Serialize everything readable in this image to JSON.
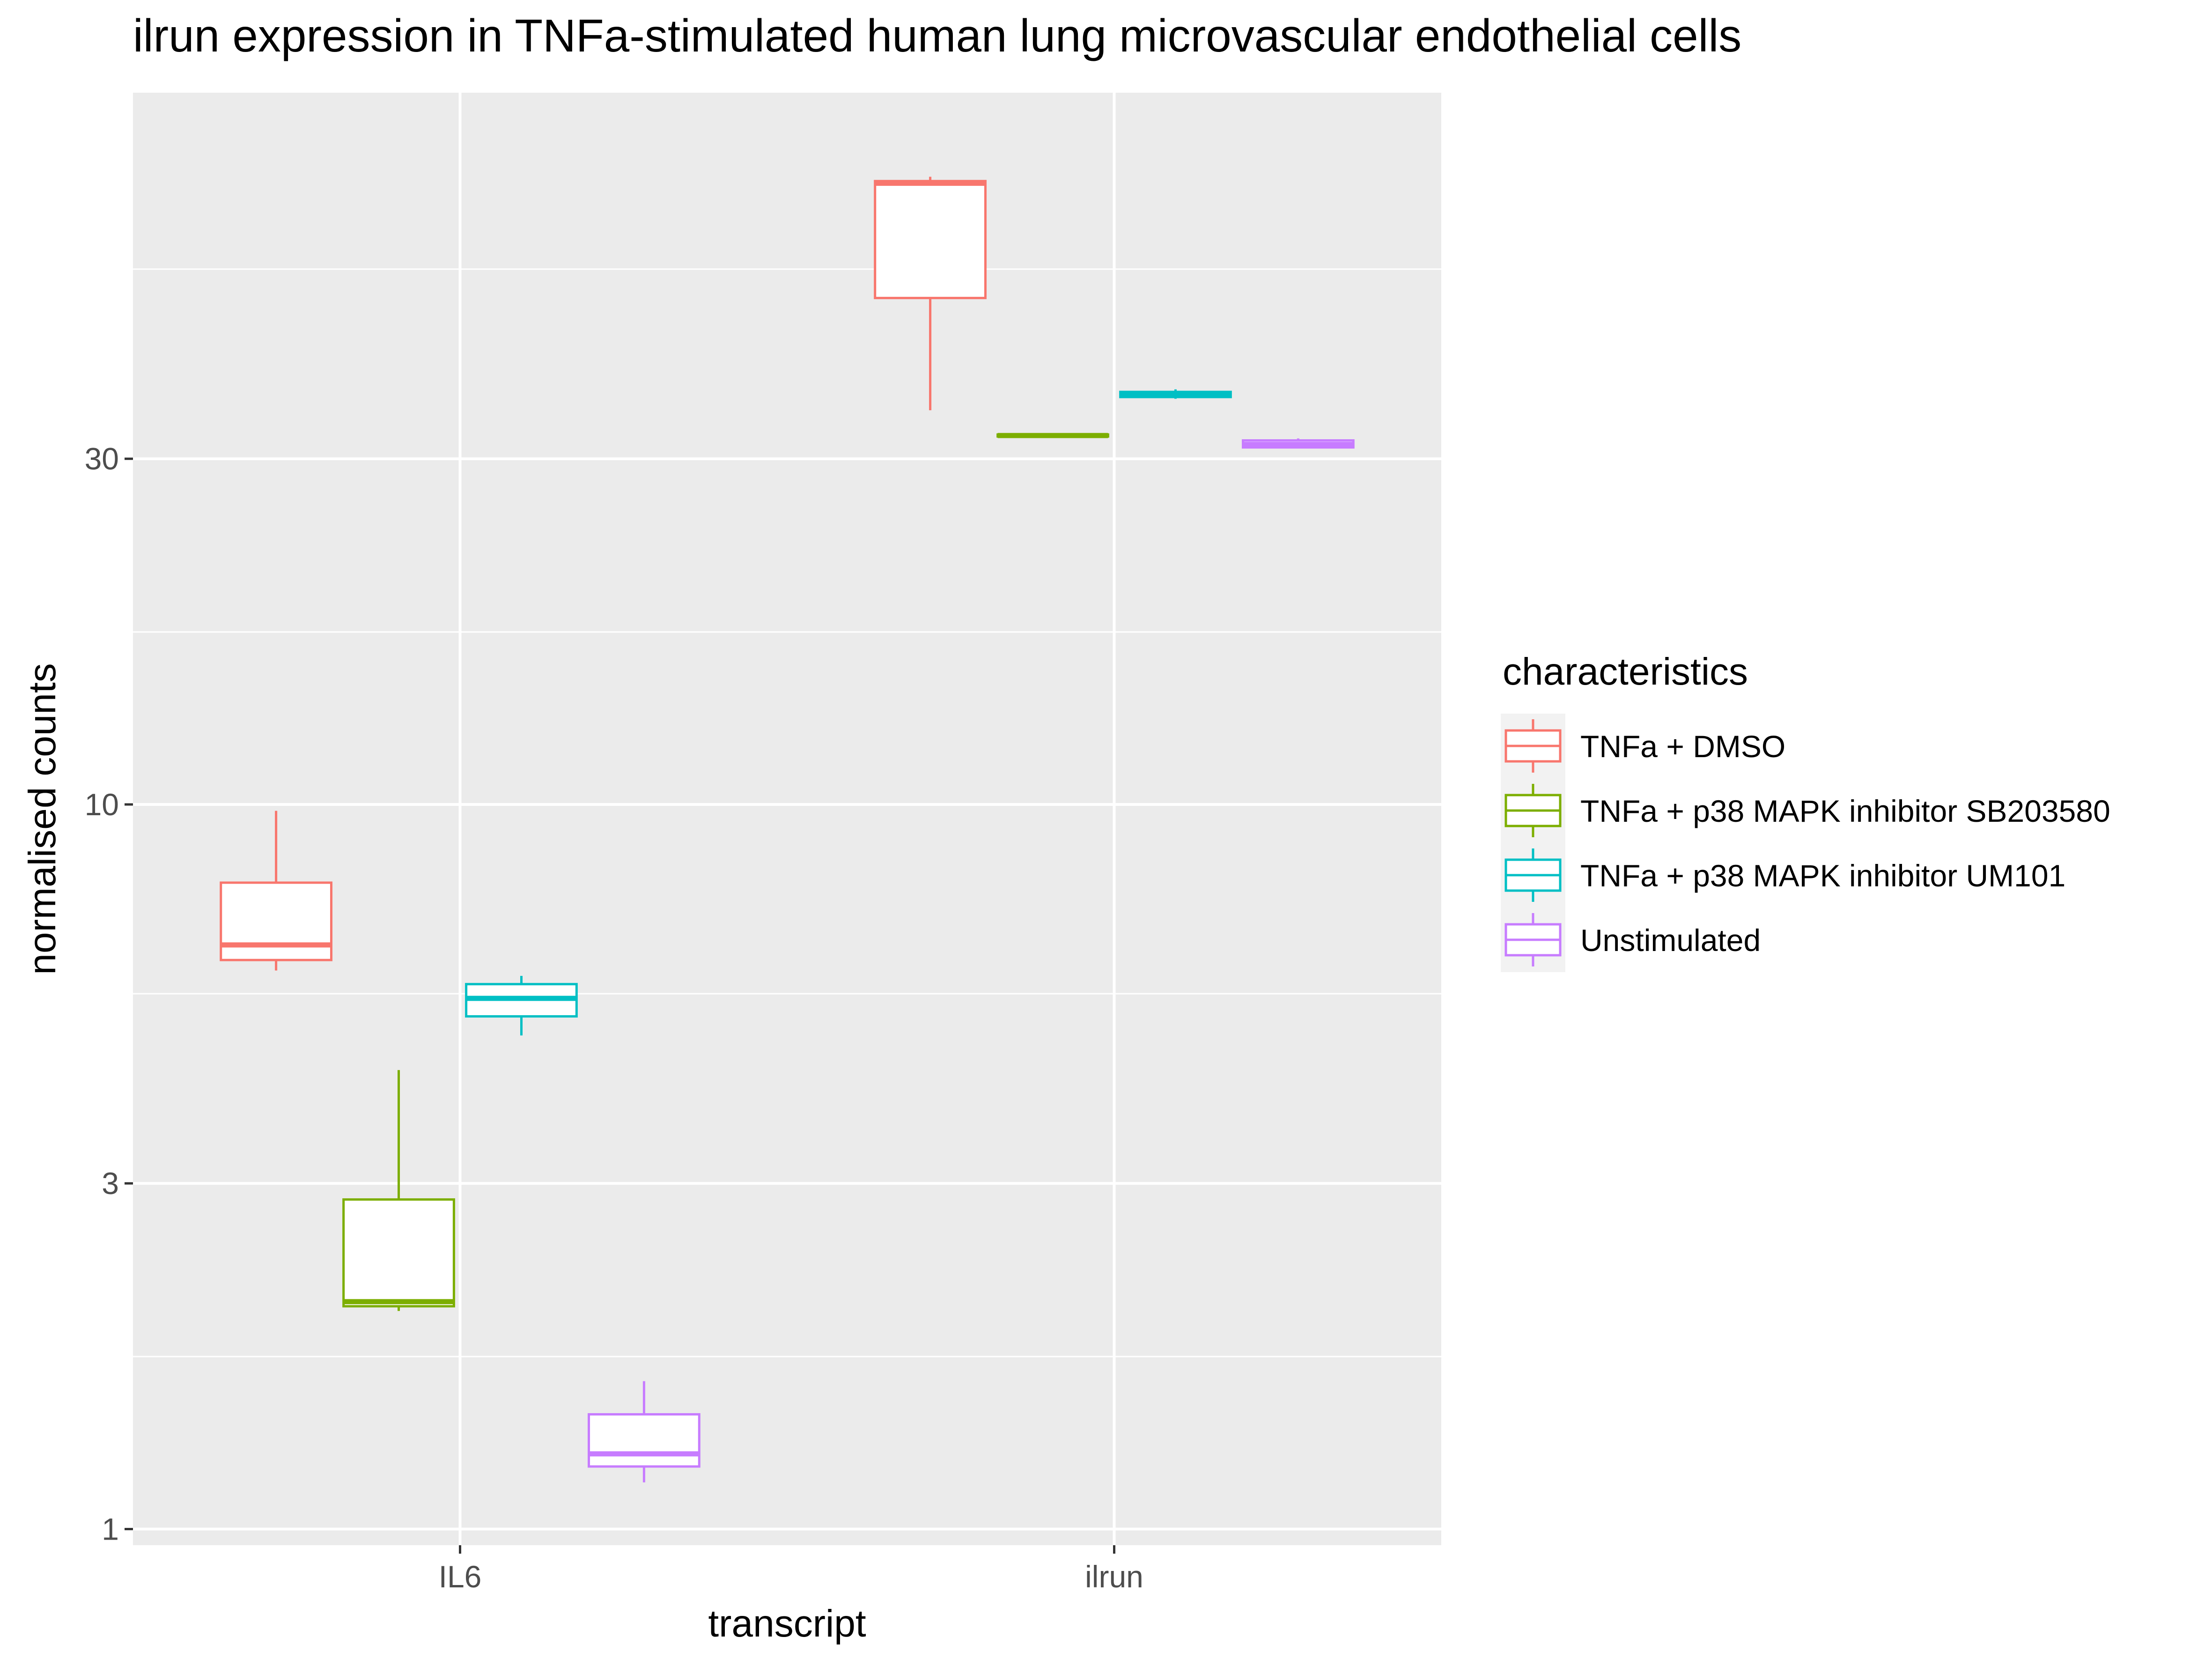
{
  "chart_data": {
    "type": "box",
    "title": "ilrun expression in TNFa-stimulated human lung microvascular endothelial cells",
    "xlabel": "transcript",
    "ylabel": "normalised counts",
    "y_scale": "log10",
    "ylim": [
      0.95,
      96
    ],
    "y_ticks": [
      {
        "value": 1,
        "label": "1"
      },
      {
        "value": 3,
        "label": "3"
      },
      {
        "value": 10,
        "label": "10"
      },
      {
        "value": 30,
        "label": "30"
      }
    ],
    "y_minor_ticks": [
      1.73,
      5.48,
      17.3,
      54.8
    ],
    "categories": [
      "IL6",
      "ilrun"
    ],
    "legend": {
      "title": "characteristics",
      "position": "right"
    },
    "series": [
      {
        "name": "TNFa + DMSO",
        "color": "#F8766D",
        "boxes": [
          {
            "category": "IL6",
            "whisker_low": 5.9,
            "q1": 6.1,
            "median": 6.4,
            "q3": 7.8,
            "whisker_high": 9.8
          },
          {
            "category": "ilrun",
            "whisker_low": 35,
            "q1": 50,
            "median": 72,
            "q3": 72.5,
            "whisker_high": 73.5
          }
        ]
      },
      {
        "name": "TNFa + p38 MAPK inhibitor SB203580",
        "color": "#7CAE00",
        "boxes": [
          {
            "category": "IL6",
            "whisker_low": 2.0,
            "q1": 2.03,
            "median": 2.06,
            "q3": 2.85,
            "whisker_high": 4.3
          },
          {
            "category": "ilrun",
            "whisker_low": 32.1,
            "q1": 32.2,
            "median": 32.3,
            "q3": 32.4,
            "whisker_high": 32.5
          }
        ]
      },
      {
        "name": "TNFa + p38 MAPK inhibitor UM101",
        "color": "#00BFC4",
        "boxes": [
          {
            "category": "IL6",
            "whisker_low": 4.8,
            "q1": 5.1,
            "median": 5.4,
            "q3": 5.65,
            "whisker_high": 5.8
          },
          {
            "category": "ilrun",
            "whisker_low": 36.3,
            "q1": 36.5,
            "median": 36.8,
            "q3": 37.1,
            "whisker_high": 37.4
          }
        ]
      },
      {
        "name": "Unstimulated",
        "color": "#C77CFF",
        "boxes": [
          {
            "category": "IL6",
            "whisker_low": 1.16,
            "q1": 1.22,
            "median": 1.27,
            "q3": 1.44,
            "whisker_high": 1.6
          },
          {
            "category": "ilrun",
            "whisker_low": 31.0,
            "q1": 31.1,
            "median": 31.4,
            "q3": 31.8,
            "whisker_high": 32.0
          }
        ]
      }
    ],
    "colors": {
      "panel_background": "#EBEBEB",
      "grid": "#FFFFFF",
      "box_fill": "#FFFFFF"
    }
  }
}
